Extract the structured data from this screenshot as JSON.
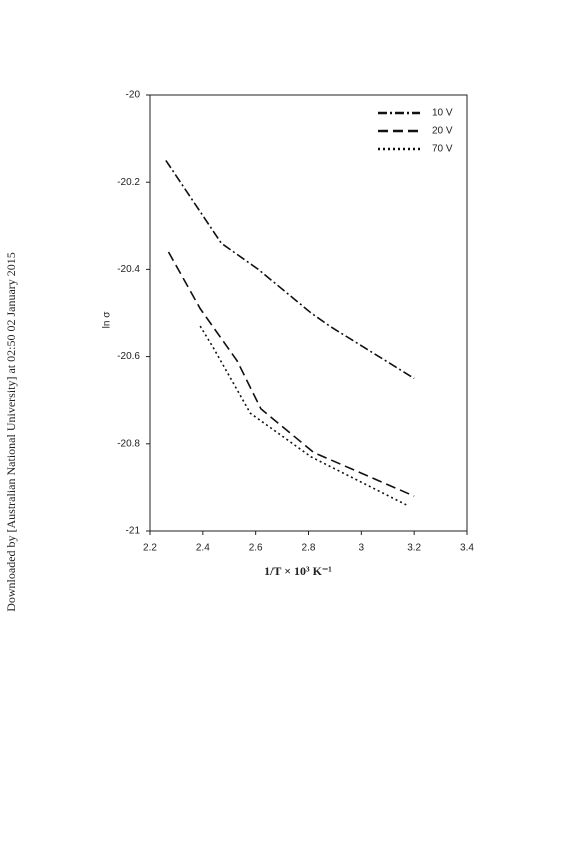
{
  "watermark": "Downloaded by [Australian National University] at 02:50 02 January 2015",
  "chart_data": {
    "type": "line",
    "xlabel": "1/T × 10³ K⁻¹",
    "ylabel": "ln σ",
    "xlim": [
      2.2,
      3.4
    ],
    "xticks": [
      2.2,
      2.4,
      2.6,
      2.8,
      3,
      3.2,
      3.4
    ],
    "ylim": [
      -21,
      -20
    ],
    "yticks": [
      -20,
      -20.2,
      -20.4,
      -20.6,
      -20.8,
      -21
    ],
    "legend": "upper right",
    "series": [
      {
        "name": "10 V",
        "color": "#111111",
        "dash": "dashdot",
        "x": [
          2.26,
          2.47,
          2.61,
          2.81,
          2.88,
          3.2
        ],
        "values": [
          -20.15,
          -20.34,
          -20.4,
          -20.5,
          -20.53,
          -20.65
        ]
      },
      {
        "name": "20 V",
        "color": "#111111",
        "dash": "dashed",
        "x": [
          2.27,
          2.39,
          2.53,
          2.62,
          2.82,
          3.2
        ],
        "values": [
          -20.36,
          -20.49,
          -20.61,
          -20.72,
          -20.82,
          -20.92
        ]
      },
      {
        "name": "70 V",
        "color": "#111111",
        "dash": "dotted",
        "x": [
          2.39,
          2.44,
          2.58,
          2.81,
          3.17
        ],
        "values": [
          -20.53,
          -20.58,
          -20.73,
          -20.83,
          -20.94
        ]
      }
    ]
  }
}
